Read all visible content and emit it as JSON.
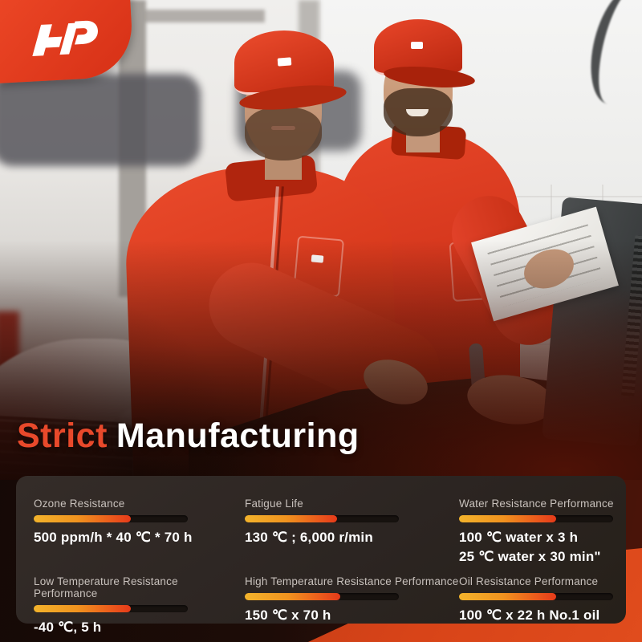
{
  "brand": {
    "logo_icon": "ap-monogram",
    "blob_color": "#e8432a"
  },
  "heading": {
    "accent": "Strict",
    "rest": "Manufacturing"
  },
  "specs": {
    "items": [
      {
        "label": "Ozone Resistance",
        "value": "500 ppm/h * 40 ℃ *  70 h",
        "fill_pct": 63
      },
      {
        "label": "Fatigue Life",
        "value": "130 ℃ ;  6,000 r/min",
        "fill_pct": 60
      },
      {
        "label": "Water Resistance Performance",
        "value": "100 ℃ water x 3 h",
        "value2": "25 ℃ water x 30 min\"",
        "fill_pct": 63
      },
      {
        "label": "Low Temperature Resistance Performance",
        "value": "-40 ℃, 5 h",
        "fill_pct": 63
      },
      {
        "label": "High Temperature Resistance Performance",
        "value": "150 ℃ x 70 h",
        "fill_pct": 62
      },
      {
        "label": "Oil Resistance Performance",
        "value": "100 ℃ x 22 h  No.1 oil",
        "fill_pct": 63
      }
    ]
  },
  "colors": {
    "accent_red": "#e8492b",
    "bar_gradient_start": "#f2b32c",
    "bar_gradient_end": "#e53a1a",
    "panel_bg": "#2c2522",
    "heading_white": "#ffffff"
  }
}
